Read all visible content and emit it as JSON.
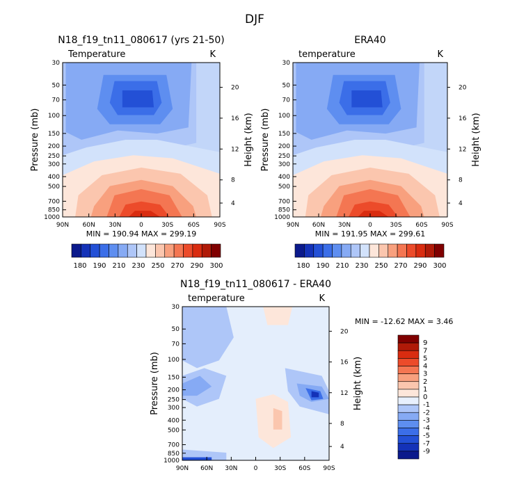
{
  "figure_title": "DJF",
  "colors": {
    "blue_scale": [
      "#0b1a8c",
      "#1432b8",
      "#2350d6",
      "#3b6ee8",
      "#5e8ef0",
      "#86aaf4",
      "#aec6f8",
      "#d2e2fb"
    ],
    "red_scale": [
      "#fde6da",
      "#fbc6ae",
      "#f8a07e",
      "#f47652",
      "#ec4b2a",
      "#d92c10",
      "#b01a08",
      "#800000"
    ],
    "neutral_light": "#e8f0fd"
  },
  "chart_data": [
    {
      "type": "heatmap",
      "title": "N18_f19_tn11_080617 (yrs 21-50)",
      "field_label": "Temperature",
      "units": "K",
      "ylabel": "Pressure (mb)",
      "ylabel_right": "Height (km)",
      "x_ticks": [
        "90N",
        "60N",
        "30N",
        "0",
        "30S",
        "60S",
        "90S"
      ],
      "xlim": [
        90,
        -90
      ],
      "y_ticks": [
        "30",
        "50",
        "70",
        "100",
        "150",
        "200",
        "250",
        "300",
        "400",
        "500",
        "700",
        "850",
        "1000"
      ],
      "y_values_mb": [
        30,
        50,
        70,
        100,
        150,
        200,
        250,
        300,
        400,
        500,
        700,
        850,
        1000
      ],
      "height_ticks": [
        "20",
        "16",
        "12",
        "8",
        "4"
      ],
      "stats": "MIN = 190.94   MAX = 299.19",
      "min": 190.94,
      "max": 299.19,
      "colorbar_levels": [
        "180",
        "190",
        "210",
        "230",
        "250",
        "270",
        "290",
        "300"
      ]
    },
    {
      "type": "heatmap",
      "title": "ERA40",
      "field_label": "temperature",
      "units": "K",
      "ylabel": "Pressure (mb)",
      "ylabel_right": "Height (km)",
      "x_ticks": [
        "90N",
        "60N",
        "30N",
        "0",
        "30S",
        "60S",
        "90S"
      ],
      "xlim": [
        90,
        -90
      ],
      "y_ticks": [
        "30",
        "50",
        "70",
        "100",
        "150",
        "200",
        "250",
        "300",
        "400",
        "500",
        "700",
        "850",
        "1000"
      ],
      "y_values_mb": [
        30,
        50,
        70,
        100,
        150,
        200,
        250,
        300,
        400,
        500,
        700,
        850,
        1000
      ],
      "height_ticks": [
        "20",
        "16",
        "12",
        "8",
        "4"
      ],
      "stats": "MIN = 191.95   MAX = 299.61",
      "min": 191.95,
      "max": 299.61,
      "colorbar_levels": [
        "180",
        "190",
        "210",
        "230",
        "250",
        "270",
        "290",
        "300"
      ]
    },
    {
      "type": "heatmap",
      "title": "N18_f19_tn11_080617 - ERA40",
      "field_label": "temperature",
      "units": "K",
      "ylabel": "Pressure (mb)",
      "ylabel_right": "Height (km)",
      "x_ticks": [
        "90N",
        "60N",
        "30N",
        "0",
        "30S",
        "60S",
        "90S"
      ],
      "xlim": [
        90,
        -90
      ],
      "y_ticks": [
        "30",
        "50",
        "70",
        "100",
        "150",
        "200",
        "250",
        "300",
        "400",
        "500",
        "700",
        "850",
        "1000"
      ],
      "y_values_mb": [
        30,
        50,
        70,
        100,
        150,
        200,
        250,
        300,
        400,
        500,
        700,
        850,
        1000
      ],
      "height_ticks": [
        "20",
        "16",
        "12",
        "8",
        "4"
      ],
      "stats": "MIN = -12.62   MAX =    3.46",
      "min": -12.62,
      "max": 3.46,
      "colorbar_levels": [
        "9",
        "7",
        "5",
        "4",
        "3",
        "2",
        "1",
        "0",
        "-1",
        "-2",
        "-3",
        "-4",
        "-5",
        "-7",
        "-9"
      ]
    }
  ]
}
